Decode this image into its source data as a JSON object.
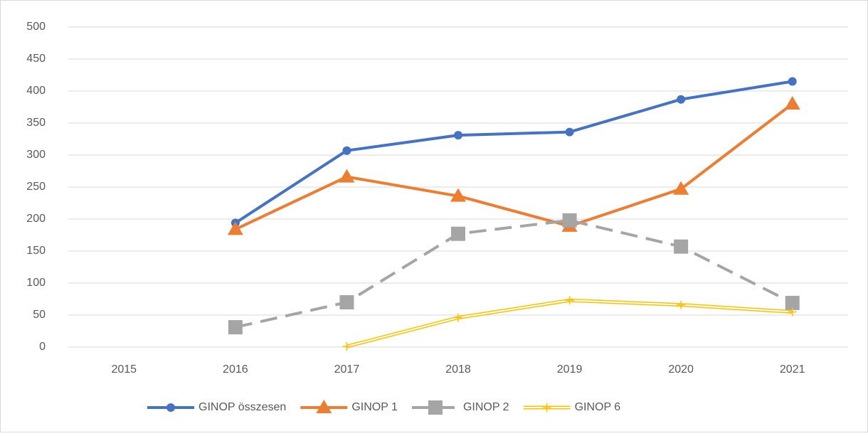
{
  "chart_data": {
    "type": "line",
    "categories": [
      "2015",
      "2016",
      "2017",
      "2018",
      "2019",
      "2020",
      "2021"
    ],
    "series": [
      {
        "name": "GINOP összesen",
        "color": "#4472c4",
        "marker": "circle",
        "style": "solid",
        "values": [
          null,
          194,
          307,
          331,
          336,
          387,
          415
        ]
      },
      {
        "name": "GINOP 1",
        "color": "#ed7d31",
        "marker": "triangle",
        "style": "solid",
        "values": [
          null,
          184,
          266,
          236,
          189,
          247,
          380
        ]
      },
      {
        "name": "GINOP 2",
        "color": "#a5a5a5",
        "marker": "square",
        "style": "dashed",
        "values": [
          null,
          31,
          70,
          177,
          198,
          157,
          69
        ]
      },
      {
        "name": "GINOP 6",
        "color": "#ffc000",
        "marker": "plus",
        "style": "double",
        "values": [
          null,
          null,
          1,
          46,
          73,
          66,
          55
        ]
      }
    ],
    "ylim": [
      0,
      500
    ],
    "yticks": [
      0,
      50,
      100,
      150,
      200,
      250,
      300,
      350,
      400,
      450,
      500
    ],
    "grid": true,
    "legend": "bottom"
  }
}
